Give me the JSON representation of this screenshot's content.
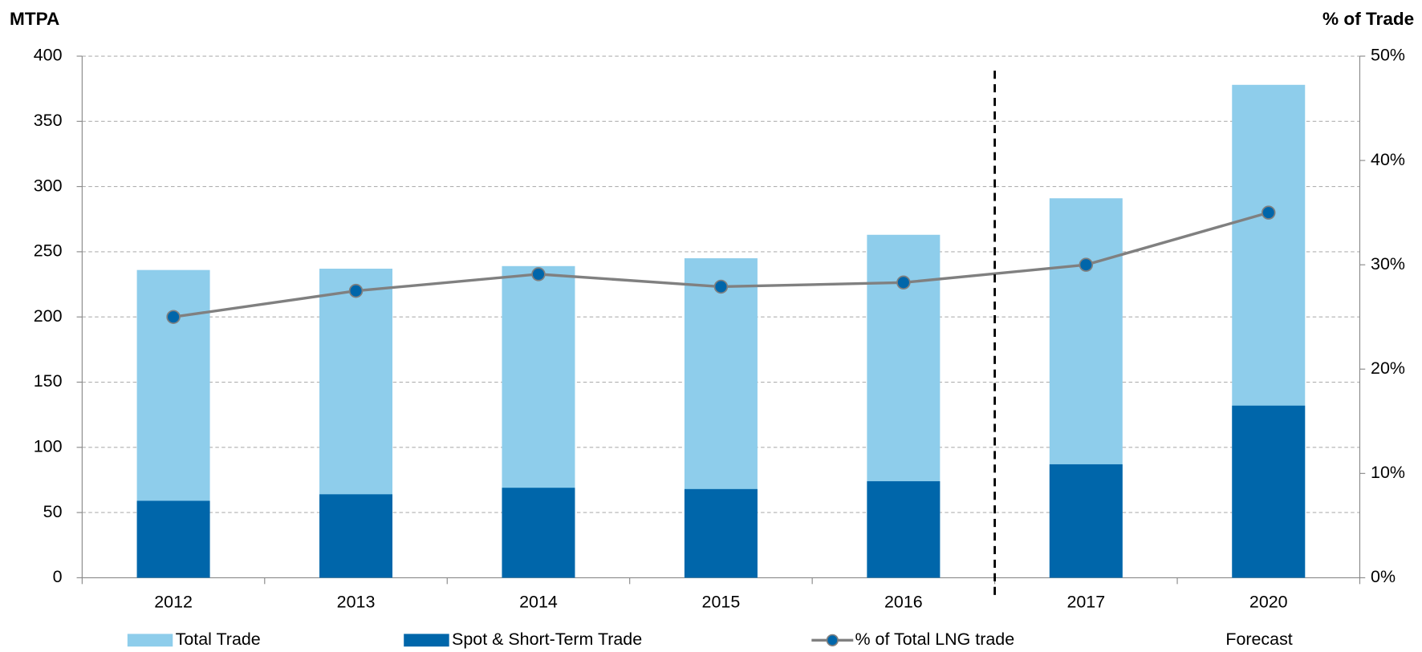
{
  "chart_data": {
    "type": "bar",
    "y_label": "MTPA",
    "y2_label": "% of Trade",
    "categories": [
      "2012",
      "2013",
      "2014",
      "2015",
      "2016",
      "2017",
      "2020"
    ],
    "series": [
      {
        "name": "Total Trade",
        "color": "#8ecdeb",
        "values": [
          236,
          237,
          239,
          245,
          263,
          291,
          378
        ]
      },
      {
        "name": "Spot & Short-Term Trade",
        "color": "#0066aa",
        "values": [
          59,
          64,
          69,
          68,
          74,
          87,
          132
        ]
      },
      {
        "name": "% of Total LNG trade",
        "type": "line",
        "axis": "y2",
        "color": "#808080",
        "marker_color": "#0066aa",
        "values": [
          25,
          27.5,
          29.1,
          27.9,
          28.3,
          30,
          35
        ]
      }
    ],
    "forecast_label": "Forecast",
    "ylim": [
      0,
      400
    ],
    "yticks": [
      0,
      50,
      100,
      150,
      200,
      250,
      300,
      350,
      400
    ],
    "y2lim": [
      0,
      50
    ],
    "y2ticks": [
      {
        "value": 0,
        "label": "0%"
      },
      {
        "value": 10,
        "label": "10%"
      },
      {
        "value": 20,
        "label": "20%"
      },
      {
        "value": 30,
        "label": "30%"
      },
      {
        "value": 40,
        "label": "40%"
      },
      {
        "value": 50,
        "label": "50%"
      }
    ],
    "grid": true,
    "legend": "bottom"
  }
}
